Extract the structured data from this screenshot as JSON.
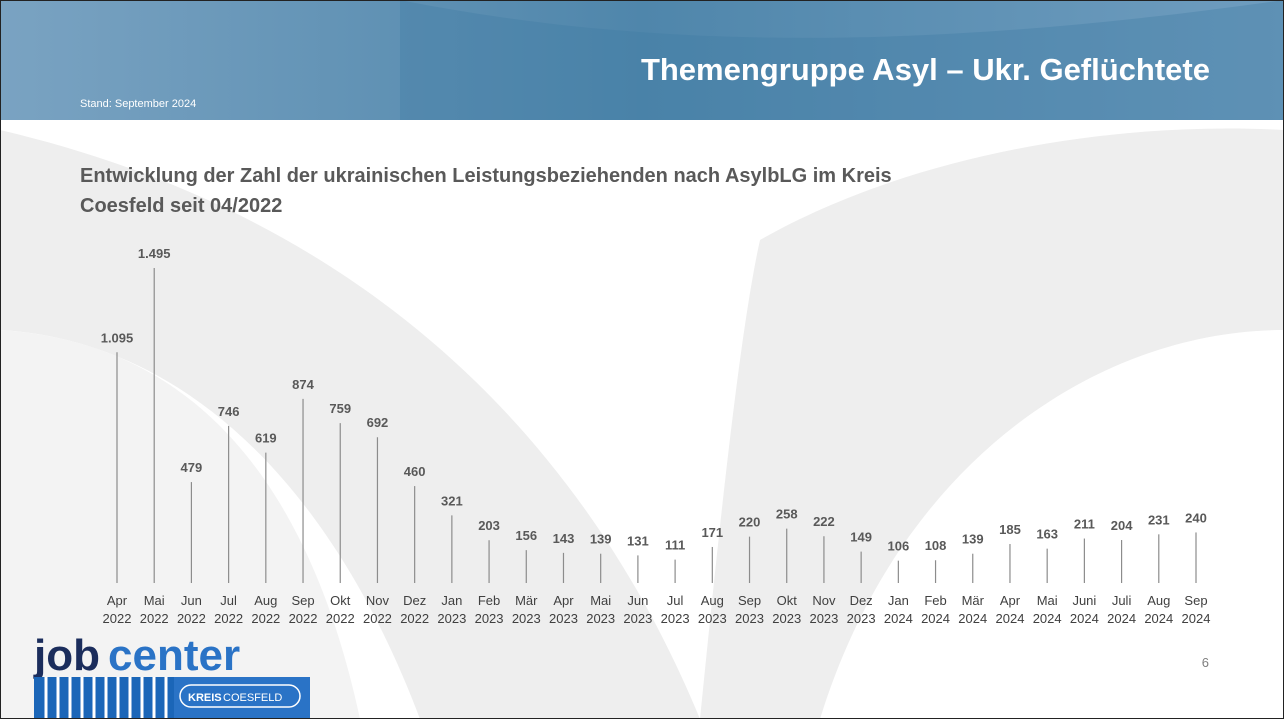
{
  "header": {
    "title": "Themengruppe Asyl – Ukr. Geflüchtete",
    "stand": "Stand: September 2024"
  },
  "chart_data": {
    "type": "bar",
    "title_lines": [
      "Entwicklung der Zahl der ukrainischen Leistungsbeziehenden nach AsylbLG im Kreis",
      "Coesfeld seit 04/2022"
    ],
    "categories": [
      "Apr 2022",
      "Mai 2022",
      "Jun 2022",
      "Jul 2022",
      "Aug 2022",
      "Sep 2022",
      "Okt 2022",
      "Nov 2022",
      "Dez 2022",
      "Jan 2023",
      "Feb 2023",
      "Mär 2023",
      "Apr 2023",
      "Mai 2023",
      "Jun 2023",
      "Jul 2023",
      "Aug 2023",
      "Sep 2023",
      "Okt 2023",
      "Nov 2023",
      "Dez 2023",
      "Jan 2024",
      "Feb 2024",
      "Mär 2024",
      "Apr 2024",
      "Mai 2024",
      "Juni 2024",
      "Juli 2024",
      "Aug 2024",
      "Sep 2024"
    ],
    "values": [
      1095,
      1495,
      479,
      746,
      619,
      874,
      759,
      692,
      460,
      321,
      203,
      156,
      143,
      139,
      131,
      111,
      171,
      220,
      258,
      222,
      149,
      106,
      108,
      139,
      185,
      163,
      211,
      204,
      231,
      240
    ],
    "value_labels": [
      "1.095",
      "1.495",
      "479",
      "746",
      "619",
      "874",
      "759",
      "692",
      "460",
      "321",
      "203",
      "156",
      "143",
      "139",
      "131",
      "111",
      "171",
      "220",
      "258",
      "222",
      "149",
      "106",
      "108",
      "139",
      "185",
      "163",
      "211",
      "204",
      "231",
      "240"
    ],
    "color": "#8c8c8c"
  },
  "footer": {
    "logo_job": "job",
    "logo_center": "center",
    "logo_kreis": "KREIS",
    "logo_coesfeld": "COESFELD",
    "page": "6"
  }
}
